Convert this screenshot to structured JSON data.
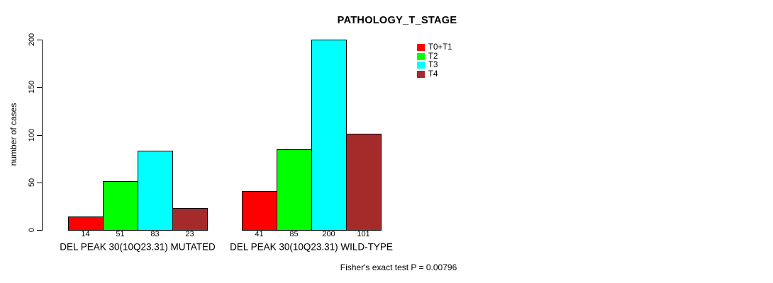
{
  "title": "PATHOLOGY_T_STAGE",
  "y_axis_label": "number of cases",
  "footer": "Fisher's exact test P = 0.00796",
  "chart_data": {
    "type": "bar",
    "title": "PATHOLOGY_T_STAGE",
    "xlabel": "",
    "ylabel": "number of cases",
    "ylim": [
      0,
      200
    ],
    "yticks": [
      0,
      50,
      100,
      150,
      200
    ],
    "grid": false,
    "legend_position": "top-right-inside",
    "categories": [
      "DEL PEAK 30(10Q23.31) MUTATED",
      "DEL PEAK 30(10Q23.31) WILD-TYPE"
    ],
    "series": [
      {
        "name": "T0+T1",
        "color": "#ff0000",
        "values": [
          14,
          41
        ]
      },
      {
        "name": "T2",
        "color": "#00ff00",
        "values": [
          51,
          85
        ]
      },
      {
        "name": "T3",
        "color": "#00ffff",
        "values": [
          83,
          200
        ]
      },
      {
        "name": "T4",
        "color": "#a52a2a",
        "values": [
          23,
          101
        ]
      }
    ],
    "bar_value_labels_shown": true,
    "annotation": "Fisher's exact test P = 0.00796"
  }
}
